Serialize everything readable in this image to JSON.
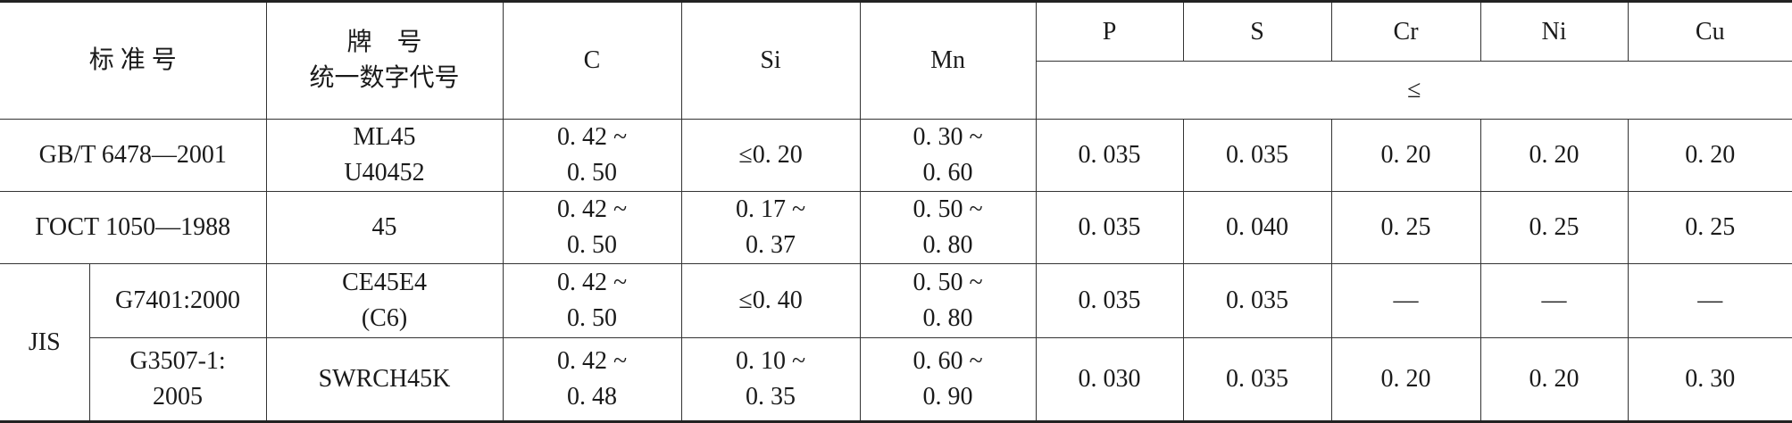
{
  "header": {
    "standard": "标 准 号",
    "grade": "牌　号\n统一数字代号",
    "columns": [
      "C",
      "Si",
      "Mn",
      "P",
      "S",
      "Cr",
      "Ni",
      "Cu"
    ],
    "limit": "≤"
  },
  "rows": [
    {
      "standard": "GB/T 6478—2001",
      "grade": "ML45\nU40452",
      "cells": [
        "0. 42 ~\n0. 50",
        "≤0. 20",
        "0. 30 ~\n0. 60",
        "0. 035",
        "0. 035",
        "0. 20",
        "0. 20",
        "0. 20"
      ]
    },
    {
      "standard": "ГОСТ 1050—1988",
      "grade": "45",
      "cells": [
        "0. 42 ~\n0. 50",
        "0. 17 ~\n0. 37",
        "0. 50 ~\n0. 80",
        "0. 035",
        "0. 040",
        "0. 25",
        "0. 25",
        "0. 25"
      ]
    }
  ],
  "jis": {
    "label": "JIS",
    "rows": [
      {
        "standard": "G7401:2000",
        "grade": "CE45E4\n(C6)",
        "cells": [
          "0. 42 ~\n0. 50",
          "≤0. 40",
          "0. 50 ~\n0. 80",
          "0. 035",
          "0. 035",
          "—",
          "—",
          "—"
        ]
      },
      {
        "standard": "G3507-1:\n2005",
        "grade": "SWRCH45K",
        "cells": [
          "0. 42 ~\n0. 48",
          "0. 10 ~\n0. 35",
          "0. 60 ~\n0. 90",
          "0. 030",
          "0. 035",
          "0. 20",
          "0. 20",
          "0. 30"
        ]
      }
    ]
  }
}
